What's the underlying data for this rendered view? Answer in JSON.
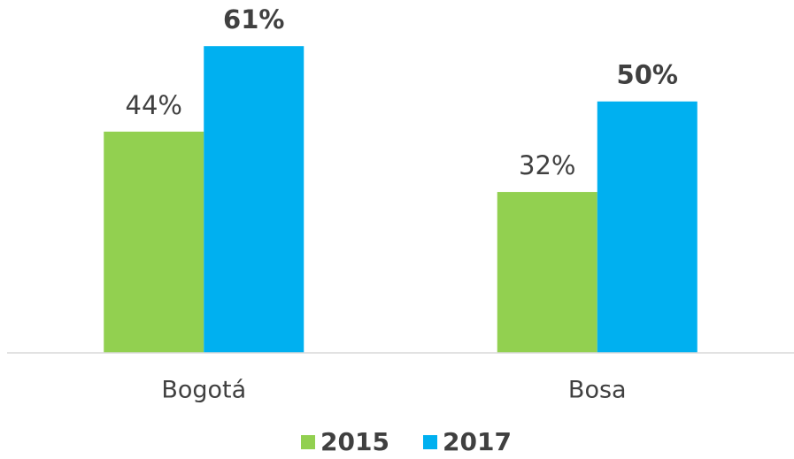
{
  "chart_data": {
    "type": "bar",
    "categories": [
      "Bogotá",
      "Bosa"
    ],
    "series": [
      {
        "name": "2015",
        "color": "#92d050",
        "values": [
          44,
          32
        ],
        "value_labels": [
          "44%",
          "32%"
        ]
      },
      {
        "name": "2017",
        "color": "#00b0f0",
        "values": [
          61,
          50
        ],
        "value_labels": [
          "61%",
          "50%"
        ]
      }
    ],
    "ylim": [
      0,
      70
    ]
  }
}
